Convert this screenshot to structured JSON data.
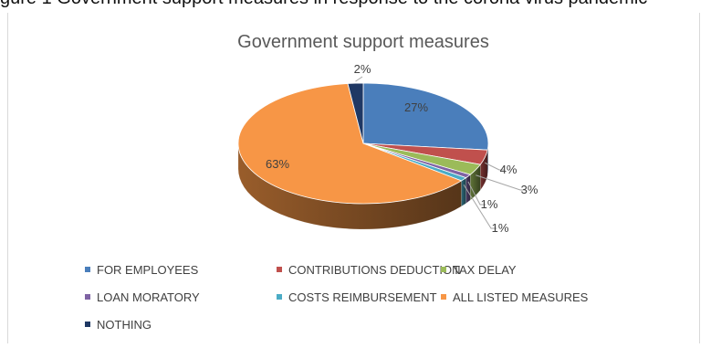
{
  "page": {
    "header_fragment": "gure 1 Government support measures in response to the corona virus pandemic"
  },
  "chart_data": {
    "type": "pie",
    "title": "Government support measures",
    "three_d": true,
    "legend_position": "bottom",
    "slices": [
      {
        "label": "FOR EMPLOYEES",
        "value": 27,
        "display": "27%",
        "color": "#4a7ebb"
      },
      {
        "label": "CONTRIBUTIONS DEDUCTION",
        "value": 4,
        "display": "4%",
        "color": "#c0504d"
      },
      {
        "label": "TAX DELAY",
        "value": 3,
        "display": "3%",
        "color": "#9bbb59"
      },
      {
        "label": "LOAN MORATORY",
        "value": 1,
        "display": "1%",
        "color": "#7f63a4"
      },
      {
        "label": "COSTS REIMBURSEMENT",
        "value": 1,
        "display": "1%",
        "color": "#4bacc6"
      },
      {
        "label": "ALL LISTED MEASURES",
        "value": 63,
        "display": "63%",
        "color": "#f79646"
      },
      {
        "label": "NOTHING",
        "value": 2,
        "display": "2%",
        "color": "#1f3864"
      }
    ]
  }
}
